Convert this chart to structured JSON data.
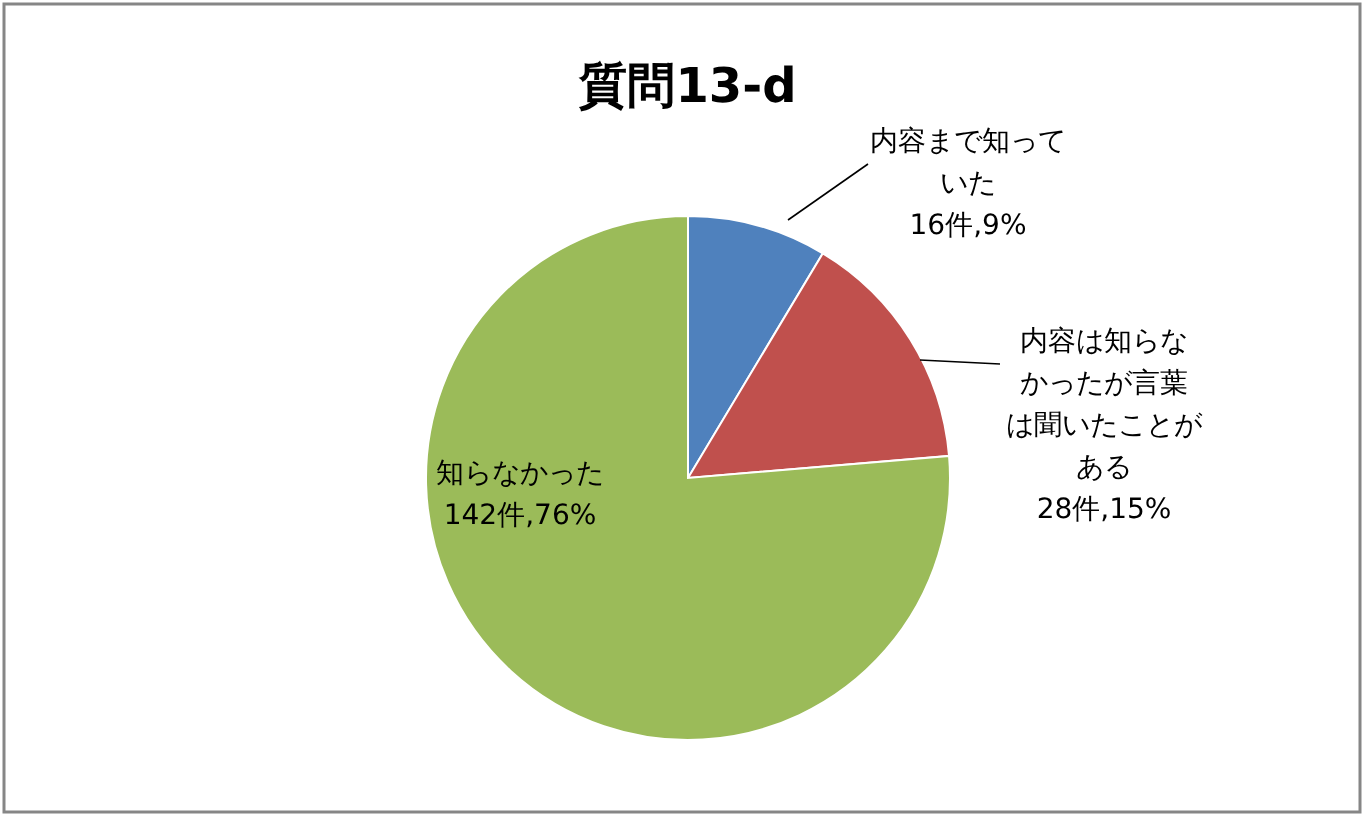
{
  "chart_data": {
    "type": "pie",
    "title": "質問13-d",
    "categories": [
      "内容まで知っていた",
      "内容は知らなかったが言葉は聞いたことがある",
      "知らなかった"
    ],
    "values": [
      16,
      28,
      142
    ],
    "value_labels": [
      "16件,9%",
      "28件,15%",
      "142件,76%"
    ],
    "colors": [
      "#4f81bd",
      "#c0504d",
      "#9bbb59"
    ]
  }
}
